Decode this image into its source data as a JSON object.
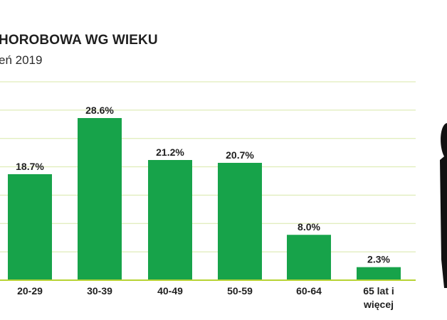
{
  "title": "HOROBOWA WG WIEKU",
  "subtitle": "eń 2019",
  "colors": {
    "bar": "#17a34a",
    "grid": "#d8e8a8",
    "baseline": "#b7d334",
    "text": "#1f1f1f"
  },
  "chart_data": {
    "type": "bar",
    "categories": [
      "20-29",
      "30-39",
      "40-49",
      "50-59",
      "60-64",
      "65 lat i więcej"
    ],
    "category_lines": [
      [
        "20-29"
      ],
      [
        "30-39"
      ],
      [
        "40-49"
      ],
      [
        "50-59"
      ],
      [
        "60-64"
      ],
      [
        "65 lat i",
        "więcej"
      ]
    ],
    "values": [
      18.7,
      28.6,
      21.2,
      20.7,
      8.0,
      2.3
    ],
    "data_labels": [
      "18.7%",
      "28.6%",
      "21.2%",
      "20.7%",
      "8.0%",
      "2.3%"
    ],
    "ylim": [
      0,
      35
    ],
    "grid": true,
    "legend": "none"
  }
}
